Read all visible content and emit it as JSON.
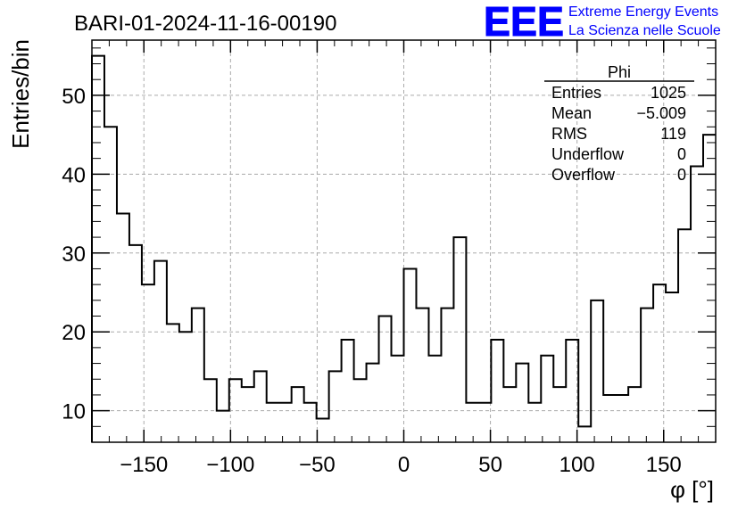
{
  "chart_data": {
    "type": "bar",
    "title": "BARI-01-2024-11-16-00190",
    "xlabel": "φ [°]",
    "ylabel": "Entries/bin",
    "xlim": [
      -180,
      180
    ],
    "ylim": [
      6,
      57
    ],
    "bin_width": 7.2,
    "xticks": [
      -150,
      -100,
      -50,
      0,
      50,
      100,
      150
    ],
    "xtick_labels": [
      "−150",
      "−100",
      "−50",
      "0",
      "50",
      "100",
      "150"
    ],
    "yticks": [
      10,
      20,
      30,
      40,
      50
    ],
    "yticks_minor_step": 2,
    "xticks_minor_step": 10,
    "grid": true,
    "values": [
      55,
      46,
      35,
      31,
      26,
      29,
      21,
      20,
      23,
      14,
      10,
      14,
      13,
      15,
      11,
      11,
      13,
      11,
      9,
      15,
      19,
      14,
      16,
      22,
      17,
      28,
      23,
      17,
      23,
      32,
      11,
      11,
      19,
      13,
      16,
      11,
      17,
      13,
      19,
      8,
      24,
      12,
      12,
      13,
      23,
      26,
      25,
      33,
      41,
      45
    ],
    "stats": {
      "name": "Phi",
      "rows": [
        {
          "label": "Entries",
          "value": "1025"
        },
        {
          "label": "Mean",
          "value": "−5.009"
        },
        {
          "label": "RMS",
          "value": "119"
        },
        {
          "label": "Underflow",
          "value": "0"
        },
        {
          "label": "Overflow",
          "value": "0"
        }
      ]
    }
  },
  "logo": {
    "mark": "EEE",
    "line1": "Extreme Energy Events",
    "line2": "La Scienza nelle Scuole",
    "color": "#0000ff"
  },
  "colors": {
    "histogram": "#000000",
    "grid": "#aaaaaa",
    "frame": "#000000"
  }
}
